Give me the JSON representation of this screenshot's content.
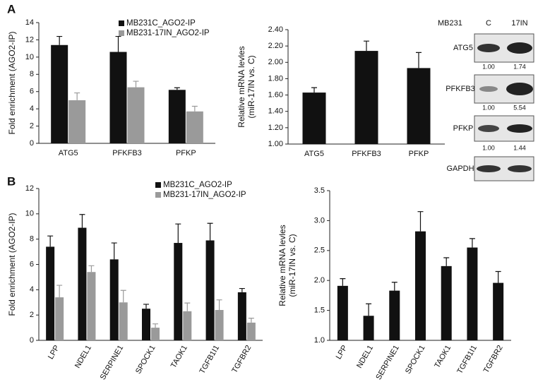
{
  "chart_data": [
    {
      "type": "bar",
      "panel": "A",
      "ylabel": [
        "Fold enrichment (AGO2-IP)"
      ],
      "categories": [
        "ATG5",
        "PFKFB3",
        "PFKP"
      ],
      "series": [
        {
          "name": "MB231C_AGO2-IP",
          "color": "#111111",
          "values": [
            11.4,
            10.6,
            6.2
          ],
          "errors": [
            1.0,
            1.8,
            0.25
          ]
        },
        {
          "name": "MB231-17IN_AGO2-IP",
          "color": "#9a9a9a",
          "values": [
            5.0,
            6.5,
            3.7
          ],
          "errors": [
            0.85,
            0.7,
            0.6
          ]
        }
      ],
      "ylim": [
        0,
        14
      ],
      "yticks": [
        0,
        2,
        4,
        6,
        8,
        10,
        12,
        14
      ]
    },
    {
      "type": "bar",
      "ylabel": [
        "Relative mRNA levles",
        "(miR-17IN vs. C)"
      ],
      "categories": [
        "ATG5",
        "PFKFB3",
        "PFKP"
      ],
      "series": [
        {
          "color": "#111111",
          "values": [
            1.63,
            2.14,
            1.93
          ],
          "errors": [
            0.06,
            0.12,
            0.19
          ]
        }
      ],
      "ylim": [
        1,
        2.4
      ],
      "yticks": [
        {
          "value": 1,
          "label": "1.00"
        },
        {
          "value": 1.2,
          "label": "1.20"
        },
        {
          "value": 1.4,
          "label": "1.40"
        },
        {
          "value": 1.6,
          "label": "1.60"
        },
        {
          "value": 1.8,
          "label": "1.80"
        },
        {
          "value": 2,
          "label": "2.00"
        },
        {
          "value": 2.2,
          "label": "2.20"
        },
        {
          "value": 2.4,
          "label": "2.40"
        }
      ]
    },
    {
      "type": "bar",
      "panel": "B",
      "ylabel": [
        "Fold enrichment (AGO2-IP)"
      ],
      "categories": [
        "LPP",
        "NDEL1",
        "SERPINE1",
        "SPOCK1",
        "TAOK1",
        "TGFB1I1",
        "TGFBR2"
      ],
      "series": [
        {
          "name": "MB231C_AGO2-IP",
          "color": "#111111",
          "values": [
            7.4,
            8.9,
            6.4,
            2.5,
            7.7,
            7.9,
            3.8
          ],
          "errors": [
            0.85,
            1.05,
            1.3,
            0.35,
            1.5,
            1.35,
            0.3
          ]
        },
        {
          "name": "MB231-17IN_AGO2-IP",
          "color": "#9a9a9a",
          "values": [
            3.4,
            5.4,
            3.0,
            1.0,
            2.3,
            2.4,
            1.4
          ],
          "errors": [
            0.95,
            0.5,
            0.95,
            0.3,
            0.65,
            0.8,
            0.35
          ]
        }
      ],
      "ylim": [
        0,
        12
      ],
      "yticks": [
        0,
        2,
        4,
        6,
        8,
        10,
        12
      ]
    },
    {
      "type": "bar",
      "ylabel": [
        "Relative mRNA levles",
        "(miR-17IN vs. C)"
      ],
      "categories": [
        "LPP",
        "NDEL1",
        "SERPINE1",
        "SPOCK1",
        "TAOK1",
        "TGFB1I1",
        "TGFBR2"
      ],
      "series": [
        {
          "color": "#111111",
          "values": [
            1.91,
            1.41,
            1.83,
            2.82,
            2.24,
            2.55,
            1.96
          ],
          "errors": [
            0.12,
            0.2,
            0.14,
            0.33,
            0.14,
            0.15,
            0.19
          ]
        }
      ],
      "ylim": [
        1,
        3.5
      ],
      "yticks": [
        {
          "value": 1,
          "label": "1.0"
        },
        1.5,
        {
          "value": 2,
          "label": "2.0"
        },
        2.5,
        {
          "value": 3,
          "label": "3.0"
        },
        3.5
      ]
    }
  ],
  "blot": {
    "cell": "MB231",
    "lanes": [
      "C",
      "17IN"
    ],
    "rows": [
      {
        "label": "ATG5",
        "quant": [
          "1.00",
          "1.74"
        ]
      },
      {
        "label": "PFKFB3",
        "quant": [
          "1.00",
          "5.54"
        ]
      },
      {
        "label": "PFKP",
        "quant": [
          "1.00",
          "1.44"
        ]
      },
      {
        "label": "GAPDH"
      }
    ]
  }
}
